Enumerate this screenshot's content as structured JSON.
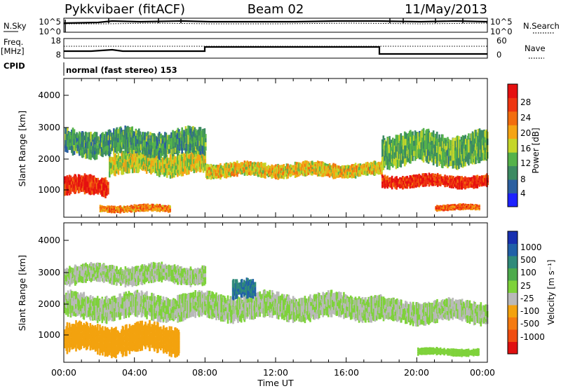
{
  "header": {
    "station": "Pykkvibaer (fitACF)",
    "beam": "Beam 02",
    "date": "11/May/2013"
  },
  "noise_panel": {
    "left_label": "N.Sky",
    "left_top_tick": "10^5",
    "left_bottom_tick": "10^0",
    "right_top_tick": "10^5",
    "right_bottom_tick": "10^0",
    "right_label": "N.Search"
  },
  "freq_panel": {
    "left_label_line1": "Freq.",
    "left_label_line2": "[MHz]",
    "left_top_tick": "18",
    "left_bottom_tick": "8",
    "right_top_tick": "60",
    "right_bottom_tick": "0",
    "right_label": "Nave"
  },
  "cpid_panel": {
    "label": "CPID",
    "program": "normal (fast stereo) 153"
  },
  "x_axis": {
    "label": "Time UT",
    "ticks": [
      "00:00",
      "04:00",
      "08:00",
      "12:00",
      "16:00",
      "20:00",
      "00:00"
    ]
  },
  "y_axis": {
    "label": "Slant Range [km]",
    "ticks": [
      "1000",
      "2000",
      "3000",
      "4000"
    ]
  },
  "power_colorbar": {
    "label": "Power [dB]",
    "ticks": [
      "4",
      "8",
      "12",
      "16",
      "20",
      "24",
      "28"
    ],
    "colors": [
      "#1d22ff",
      "#2b5fa0",
      "#3c8a62",
      "#55b24a",
      "#c5d62a",
      "#f5a414",
      "#f26d0e",
      "#ee3510",
      "#e51010"
    ]
  },
  "velocity_colorbar": {
    "label": "Velocity [m s⁻¹]",
    "ticks": [
      "1000",
      "500",
      "100",
      "25",
      "-25",
      "-100",
      "-500",
      "-1000"
    ],
    "colors": [
      "#1830b0",
      "#2060a8",
      "#2f8a7a",
      "#4caa4c",
      "#7ed23a",
      "#b9b9b9",
      "#f3a20e",
      "#f57a10",
      "#f04d10",
      "#e01010"
    ]
  },
  "chart_data": [
    {
      "type": "heatmap",
      "title": "",
      "xlabel": "Time UT",
      "ylabel": "Slant Range [km]",
      "xlim": [
        0,
        24
      ],
      "ylim": [
        180,
        4500
      ],
      "colorbar_label": "Power [dB]",
      "colorbar_range": [
        0,
        32
      ],
      "bands": [
        {
          "t0": 0.0,
          "t1": 2.5,
          "r_center": 1150,
          "r_halfwidth": 300,
          "value": 28
        },
        {
          "t0": 2.5,
          "t1": 8.0,
          "r_center": 1850,
          "r_halfwidth": 350,
          "value": 16
        },
        {
          "t0": 0.0,
          "t1": 8.0,
          "r_center": 2500,
          "r_halfwidth": 400,
          "value": 10
        },
        {
          "t0": 8.0,
          "t1": 18.0,
          "r_center": 1650,
          "r_halfwidth": 230,
          "value": 18
        },
        {
          "t0": 18.0,
          "t1": 24.0,
          "r_center": 1300,
          "r_halfwidth": 200,
          "value": 28
        },
        {
          "t0": 18.0,
          "t1": 24.0,
          "r_center": 2300,
          "r_halfwidth": 500,
          "value": 12
        },
        {
          "t0": 2.0,
          "t1": 6.0,
          "r_center": 450,
          "r_halfwidth": 120,
          "value": 22
        },
        {
          "t0": 21.0,
          "t1": 23.5,
          "r_center": 480,
          "r_halfwidth": 100,
          "value": 24
        }
      ]
    },
    {
      "type": "heatmap",
      "title": "",
      "xlabel": "Time UT",
      "ylabel": "Slant Range [km]",
      "xlim": [
        0,
        24
      ],
      "ylim": [
        180,
        4500
      ],
      "colorbar_label": "Velocity [m s⁻¹]",
      "colorbar_range": [
        -1000,
        1000
      ],
      "bands": [
        {
          "t0": 0.0,
          "t1": 6.5,
          "r_center": 900,
          "r_halfwidth": 450,
          "value": -300
        },
        {
          "t0": 0.0,
          "t1": 18.0,
          "r_center": 1900,
          "r_halfwidth": 400,
          "value": 0
        },
        {
          "t0": 18.0,
          "t1": 24.0,
          "r_center": 1750,
          "r_halfwidth": 350,
          "value": 0
        },
        {
          "t0": 9.5,
          "t1": 10.8,
          "r_center": 2400,
          "r_halfwidth": 300,
          "value": 600
        },
        {
          "t0": 20.0,
          "t1": 23.5,
          "r_center": 500,
          "r_halfwidth": 120,
          "value": 100
        },
        {
          "t0": 0.0,
          "t1": 8.0,
          "r_center": 2900,
          "r_halfwidth": 300,
          "value": 0
        }
      ]
    }
  ]
}
